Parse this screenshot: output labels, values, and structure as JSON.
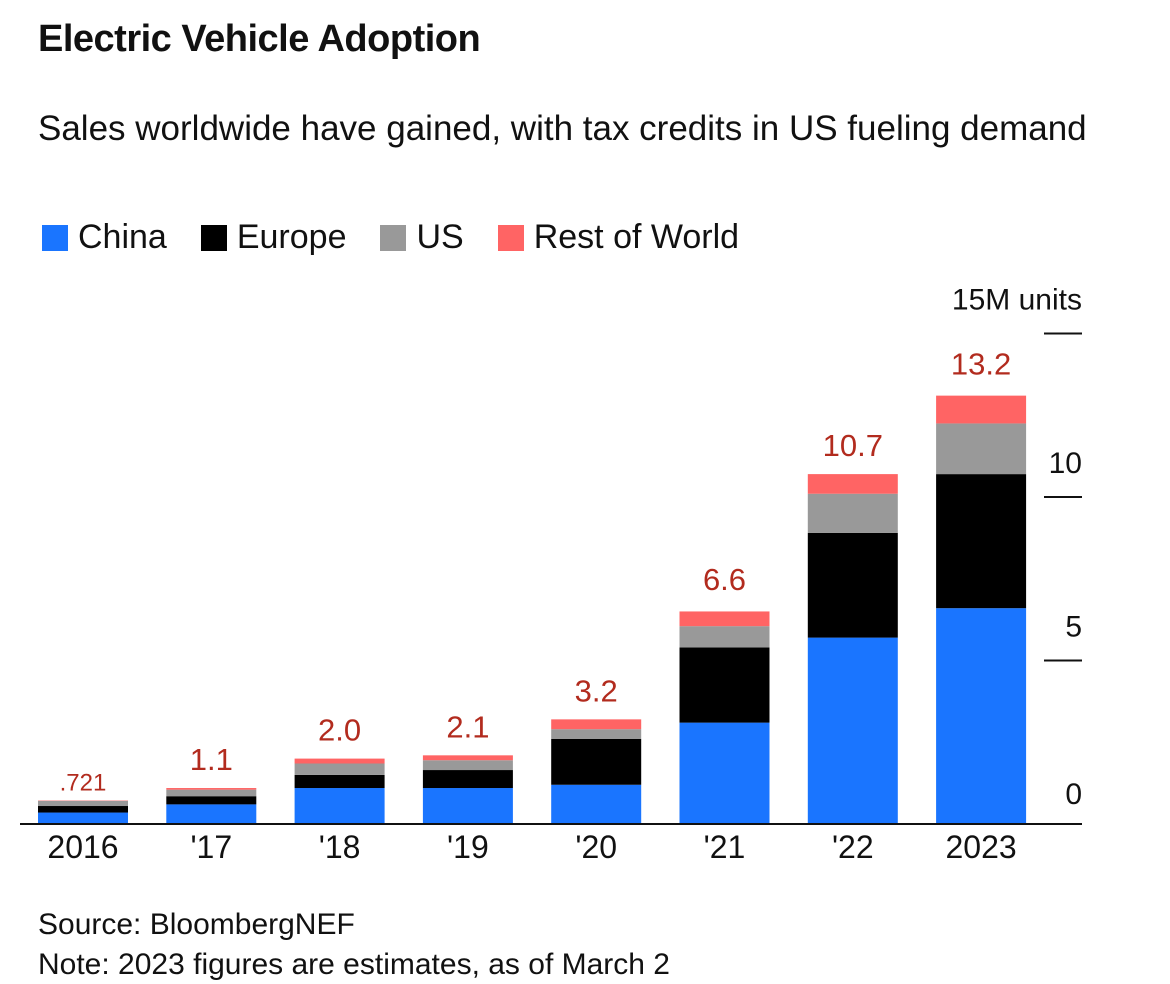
{
  "header": {
    "title": "Electric Vehicle Adoption",
    "subtitle": "Sales worldwide have gained, with tax credits in US fueling demand"
  },
  "legend": [
    {
      "label": "China",
      "color": "#1a75ff"
    },
    {
      "label": "Europe",
      "color": "#000000"
    },
    {
      "label": "US",
      "color": "#999999"
    },
    {
      "label": "Rest of World",
      "color": "#ff6464"
    }
  ],
  "footer": {
    "source": "Source: BloombergNEF",
    "note": "Note: 2023 figures are estimates, as of March 2"
  },
  "chart_data": {
    "type": "bar",
    "stacked": true,
    "categories": [
      "2016",
      "'17",
      "'18",
      "'19",
      "'20",
      "'21",
      "'22",
      "2023"
    ],
    "series": [
      {
        "name": "China",
        "color": "#1a75ff",
        "values": [
          0.35,
          0.6,
          1.1,
          1.1,
          1.2,
          3.1,
          5.7,
          6.6
        ]
      },
      {
        "name": "Europe",
        "color": "#000000",
        "values": [
          0.2,
          0.25,
          0.4,
          0.55,
          1.4,
          2.3,
          3.2,
          4.1
        ]
      },
      {
        "name": "US",
        "color": "#999999",
        "values": [
          0.16,
          0.2,
          0.35,
          0.3,
          0.3,
          0.65,
          1.2,
          1.55
        ]
      },
      {
        "name": "Rest of World",
        "color": "#ff6464",
        "values": [
          0.011,
          0.05,
          0.15,
          0.15,
          0.3,
          0.45,
          0.6,
          0.85
        ]
      }
    ],
    "totals": [
      0.721,
      1.1,
      2.0,
      2.1,
      3.2,
      6.6,
      10.7,
      13.2
    ],
    "total_labels": [
      ".721",
      "1.1",
      "2.0",
      "2.1",
      "3.2",
      "6.6",
      "10.7",
      "13.2"
    ],
    "total_label_color": "#b22b1e",
    "y_ticks": [
      {
        "value": 0,
        "label": "0"
      },
      {
        "value": 5,
        "label": "5"
      },
      {
        "value": 10,
        "label": "10"
      },
      {
        "value": 15,
        "label": "15M units"
      }
    ],
    "ylim": [
      0,
      15
    ],
    "grid": false,
    "legend_position": "top-left"
  }
}
